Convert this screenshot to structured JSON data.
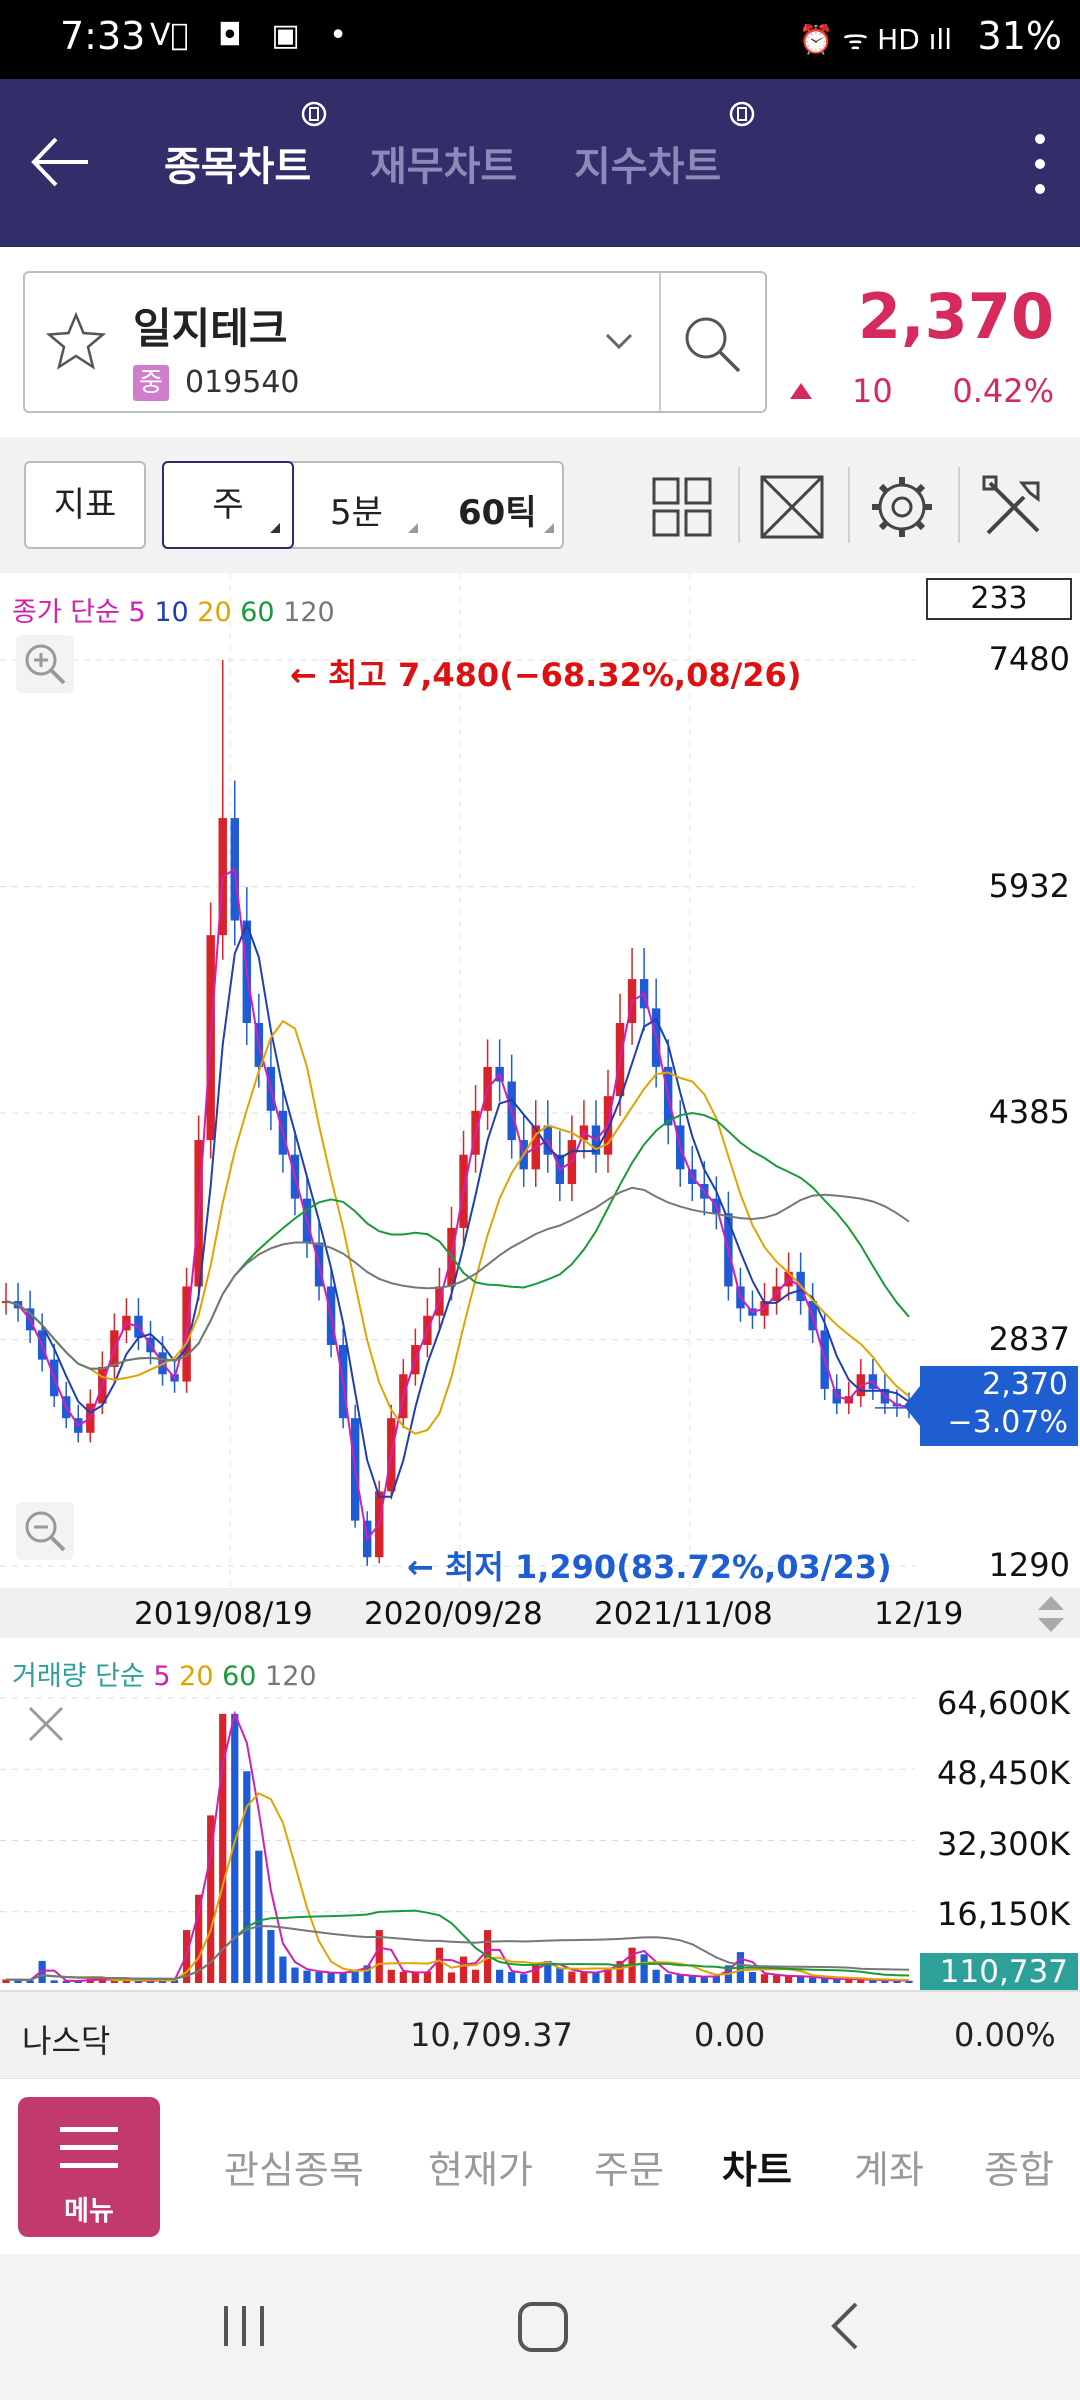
{
  "status_bar": {
    "time": "7:33",
    "left_icons": "V⃠ ◘ ▣ •",
    "right_icons": "⏰ ᯤ HD ıll",
    "battery": "31%"
  },
  "header": {
    "tabs": [
      {
        "label": "종목차트",
        "active": true
      },
      {
        "label": "재무차트",
        "active": false
      },
      {
        "label": "지수차트",
        "active": false
      }
    ]
  },
  "stock": {
    "name": "일지테크",
    "market_badge": "중",
    "code": "019540",
    "price": "2,370",
    "change": "10",
    "change_rate": "0.42%"
  },
  "toolbar": {
    "indicator_label": "지표",
    "period_week": "주",
    "period_5min": "5분",
    "period_60tick": "60틱"
  },
  "chart_legend": {
    "price_prefix": "종가 단순",
    "ma": [
      "5",
      "10",
      "20",
      "60",
      "120"
    ],
    "ma_colors": [
      "#d11fb3",
      "#1e3fb0",
      "#e0a400",
      "#1a9a3a",
      "#777777"
    ]
  },
  "chart_badge": "233",
  "annotations": {
    "high": "← 최고 7,480(−68.32%,08/26)",
    "low": "← 최저 1,290(83.72%,03/23)"
  },
  "current_price_tag": {
    "price": "2,370",
    "rate": "−3.07%"
  },
  "x_axis_labels": [
    "2019/08/19",
    "2020/09/28",
    "2021/11/08",
    "12/19"
  ],
  "volume_legend": {
    "prefix": "거래량 단순",
    "ma": [
      "5",
      "20",
      "60",
      "120"
    ]
  },
  "volume_badge": "110,737",
  "market_bar": {
    "name": "나스닥",
    "index": "10,709.37",
    "change": "0.00",
    "rate": "0.00%"
  },
  "bottom_nav": {
    "menu_label": "메뉴",
    "items": [
      {
        "label": "관심종목",
        "active": false
      },
      {
        "label": "현재가",
        "active": false
      },
      {
        "label": "주문",
        "active": false
      },
      {
        "label": "차트",
        "active": true
      },
      {
        "label": "계좌",
        "active": false
      },
      {
        "label": "종합",
        "active": false
      }
    ]
  },
  "chart_data": [
    {
      "type": "candlestick",
      "title": "",
      "x_ticks": [
        "2019/08/19",
        "2020/09/28",
        "2021/11/08",
        "12/19"
      ],
      "y_ticks": [
        7480,
        5932,
        4385,
        2837,
        1290
      ],
      "ylim": [
        1290,
        7480
      ],
      "high": 7480,
      "low": 1290,
      "last": 2370,
      "close_series": [
        3100,
        3050,
        2900,
        2700,
        2450,
        2300,
        2200,
        2400,
        2650,
        2900,
        3000,
        2850,
        2750,
        2600,
        2550,
        3200,
        4200,
        5600,
        6400,
        5700,
        5000,
        4700,
        4400,
        4100,
        3800,
        3500,
        3200,
        2800,
        2300,
        1600,
        1350,
        1800,
        2300,
        2600,
        2800,
        3000,
        3200,
        3600,
        4100,
        4400,
        4700,
        4600,
        4200,
        4000,
        4300,
        4100,
        3900,
        4200,
        4300,
        4100,
        4500,
        5000,
        5300,
        5100,
        4700,
        4300,
        4000,
        3900,
        3800,
        3700,
        3200,
        3050,
        3000,
        3100,
        3200,
        3300,
        3100,
        2900,
        2500,
        2400,
        2450,
        2600,
        2500,
        2400,
        2380,
        2370
      ],
      "ma_periods": [
        5,
        10,
        20,
        60,
        120
      ]
    },
    {
      "type": "bar",
      "title": "",
      "y_ticks": [
        "64,600K",
        "48,450K",
        "32,300K",
        "16,150K"
      ],
      "ylim": [
        0,
        64600
      ],
      "last": "110,737",
      "values": [
        800,
        700,
        600,
        5000,
        600,
        500,
        400,
        900,
        700,
        800,
        600,
        500,
        500,
        600,
        700,
        12000,
        20000,
        38000,
        61000,
        61000,
        48000,
        30000,
        12000,
        6000,
        3500,
        2800,
        2500,
        2200,
        2400,
        3000,
        4000,
        12000,
        3000,
        2500,
        2300,
        2600,
        8000,
        2400,
        6000,
        3000,
        12000,
        3000,
        2500,
        2000,
        4000,
        5000,
        3500,
        2600,
        2400,
        2300,
        3500,
        5000,
        8000,
        6500,
        3000,
        2000,
        1800,
        1500,
        1400,
        1600,
        4000,
        7000,
        2500,
        2000,
        1700,
        1500,
        1600,
        1200,
        1000,
        900,
        900,
        800,
        700,
        600,
        600,
        500
      ]
    }
  ]
}
